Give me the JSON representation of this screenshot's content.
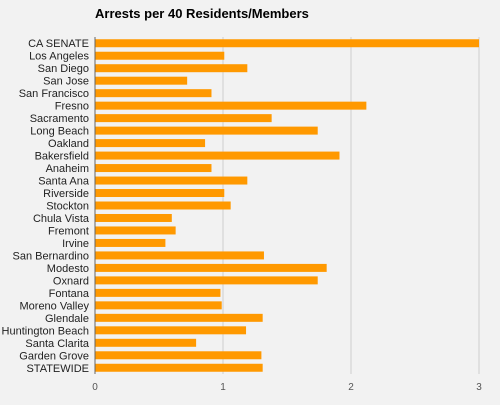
{
  "chart_data": {
    "type": "bar",
    "orientation": "horizontal",
    "title": "Arrests per 40 Residents/Members",
    "xlabel": "",
    "ylabel": "",
    "xlim": [
      0,
      3
    ],
    "x_ticks": [
      "0",
      "1",
      "2",
      "3"
    ],
    "grid": true,
    "bar_color": "#ff9900",
    "categories": [
      "CA SENATE",
      "Los Angeles",
      "San Diego",
      "San Jose",
      "San Francisco",
      "Fresno",
      "Sacramento",
      "Long Beach",
      "Oakland",
      "Bakersfield",
      "Anaheim",
      "Santa Ana",
      "Riverside",
      "Stockton",
      "Chula Vista",
      "Fremont",
      "Irvine",
      "San Bernardino",
      "Modesto",
      "Oxnard",
      "Fontana",
      "Moreno Valley",
      "Glendale",
      "Huntington Beach",
      "Santa Clarita",
      "Garden Grove",
      "STATEWIDE"
    ],
    "values": [
      3.0,
      1.01,
      1.19,
      0.72,
      0.91,
      2.12,
      1.38,
      1.74,
      0.86,
      1.91,
      0.91,
      1.19,
      1.01,
      1.06,
      0.6,
      0.63,
      0.55,
      1.32,
      1.81,
      1.74,
      0.98,
      0.99,
      1.31,
      1.18,
      0.79,
      1.3,
      1.31
    ]
  }
}
